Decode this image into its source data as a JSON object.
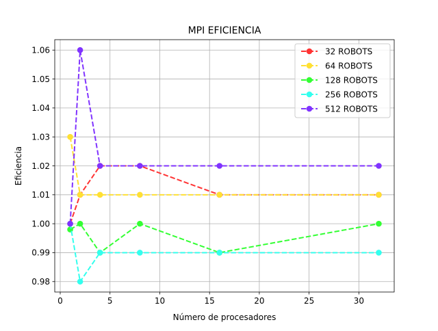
{
  "chart_data": {
    "type": "line",
    "title": "MPI EFICIENCIA",
    "xlabel": "Número de procesadores",
    "ylabel": "Eficiencia",
    "xlim": [
      -0.55,
      33.55
    ],
    "ylim": [
      0.9764,
      1.0636
    ],
    "xticks": [
      0,
      5,
      10,
      15,
      20,
      25,
      30
    ],
    "yticks": [
      0.98,
      0.99,
      1.0,
      1.01,
      1.02,
      1.03,
      1.04,
      1.05,
      1.06
    ],
    "ytick_labels": [
      "0.98",
      "0.99",
      "1.00",
      "1.01",
      "1.02",
      "1.03",
      "1.04",
      "1.05",
      "1.06"
    ],
    "grid": true,
    "legend_position": "top-right",
    "x": [
      1,
      2,
      4,
      8,
      16,
      32
    ],
    "series": [
      {
        "name": "32 ROBOTS",
        "color": "#ff3333",
        "values": [
          1.0,
          1.01,
          1.02,
          1.02,
          1.01,
          1.01
        ]
      },
      {
        "name": "64 ROBOTS",
        "color": "#ffe033",
        "values": [
          1.03,
          1.01,
          1.01,
          1.01,
          1.01,
          1.01
        ]
      },
      {
        "name": "128 ROBOTS",
        "color": "#33ff33",
        "values": [
          0.998,
          1.0,
          0.99,
          1.0,
          0.99,
          1.0
        ]
      },
      {
        "name": "256 ROBOTS",
        "color": "#33ffee",
        "values": [
          1.0,
          0.98,
          0.99,
          0.99,
          0.99,
          0.99
        ]
      },
      {
        "name": "512 ROBOTS",
        "color": "#8033ff",
        "values": [
          1.0,
          1.06,
          1.02,
          1.02,
          1.02,
          1.02
        ]
      }
    ]
  }
}
